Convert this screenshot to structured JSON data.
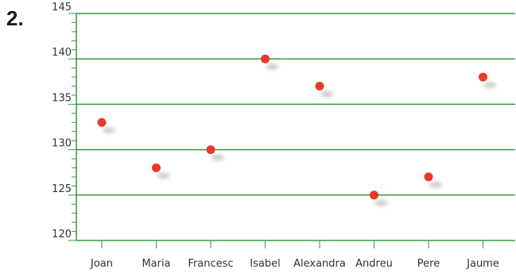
{
  "exercise": {
    "number": "2."
  },
  "colors": {
    "grid": "#2e9e3e",
    "point": "#e8392b",
    "shadow": "#c9c9c9",
    "text": "#333333"
  },
  "chart_data": {
    "type": "scatter",
    "title": "",
    "xlabel": "",
    "ylabel": "",
    "categories": [
      "Joan",
      "Maria",
      "Francesc",
      "Isabel",
      "Alexandra",
      "Andreu",
      "Pere",
      "Jaume"
    ],
    "values": [
      133,
      128,
      130,
      140,
      137,
      125,
      127,
      138
    ],
    "ylim": [
      120,
      145
    ],
    "yticks": [
      120,
      125,
      130,
      135,
      140,
      145
    ],
    "y_minor_step": 1,
    "grid": true,
    "legend": "none"
  }
}
